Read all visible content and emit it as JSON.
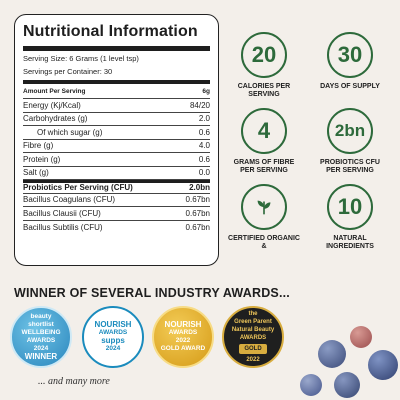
{
  "nutrition": {
    "title": "Nutritional Information",
    "serving_size": "Serving Size: 6 Grams (1 level tsp)",
    "servings_per_container": "Servings per Container: 30",
    "header_label": "Amount Per Serving",
    "header_value": "6g",
    "rows": [
      {
        "label": "Energy (Kj/Kcal)",
        "value": "84/20"
      },
      {
        "label": "Carbohydrates (g)",
        "value": "2.0"
      },
      {
        "label": "Of which sugar (g)",
        "value": "0.6"
      },
      {
        "label": "Fibre  (g)",
        "value": "4.0"
      },
      {
        "label": "Protein  (g)",
        "value": "0.6"
      },
      {
        "label": "Salt  (g)",
        "value": "0.0"
      },
      {
        "label": "Probiotics Per Serving (CFU)",
        "value": "2.0bn"
      },
      {
        "label": "Bacillus Coagulans (CFU)",
        "value": "0.67bn"
      },
      {
        "label": "Bacillus Clausii (CFU)",
        "value": "0.67bn"
      },
      {
        "label": "Bacillus Subtilis (CFU)",
        "value": "0.67bn"
      }
    ]
  },
  "stats": [
    {
      "value": "20",
      "caption": "CALORIES PER SERVING"
    },
    {
      "value": "30",
      "caption": "DAYS OF SUPPLY"
    },
    {
      "value": "4",
      "caption": "GRAMS OF FIBRE PER SERVING"
    },
    {
      "value": "2bn",
      "caption": "PROBIOTICS CFU PER SERVING"
    },
    {
      "icon": "leaf-icon",
      "caption": "CERTIFIED ORGANIC &"
    },
    {
      "value": "10",
      "caption": "NATURAL INGREDIENTS"
    }
  ],
  "accent_color": "#2d6a3b",
  "awards": {
    "heading": "WINNER OF SEVERAL INDUSTRY AWARDS...",
    "badges": [
      {
        "lines": [
          "beauty",
          "shortlist",
          "WELLBEING",
          "AWARDS",
          "2024",
          "WINNER"
        ]
      },
      {
        "lines": [
          "NOURISH",
          "AWARDS",
          "supps",
          "2024"
        ]
      },
      {
        "lines": [
          "NOURISH",
          "AWARDS",
          "2022",
          "GOLD AWARD"
        ]
      },
      {
        "lines": [
          "the",
          "Green Parent",
          "Natural Beauty",
          "AWARDS",
          "GOLD",
          "2022"
        ]
      }
    ],
    "more": "... and many more"
  }
}
